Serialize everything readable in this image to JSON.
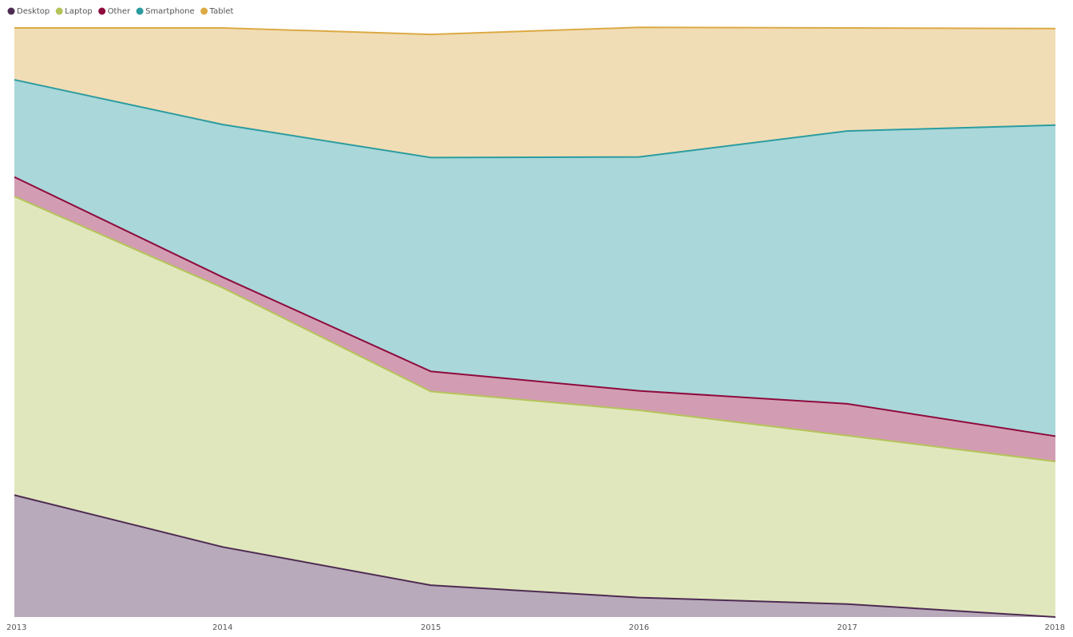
{
  "chart_data": {
    "type": "stacked-area",
    "categories": [
      "2013",
      "2014",
      "2015",
      "2016",
      "2017",
      "2018"
    ],
    "series": [
      {
        "name": "Desktop",
        "color": "#4d2b52",
        "values": [
          20.7,
          11.9,
          5.4,
          3.3,
          2.2,
          0
        ]
      },
      {
        "name": "Laptop",
        "color": "#b5c45a",
        "values": [
          50.7,
          44.0,
          32.9,
          31.8,
          28.6,
          26.4
        ]
      },
      {
        "name": "Other",
        "color": "#8e0b3e",
        "values": [
          3.3,
          1.8,
          3.4,
          3.3,
          5.4,
          4.3
        ]
      },
      {
        "name": "Smartphone",
        "color": "#2b9ca0",
        "values": [
          16.5,
          25.9,
          36.3,
          39.7,
          46.3,
          52.8
        ]
      },
      {
        "name": "Tablet",
        "color": "#dcaa45",
        "values": [
          8.8,
          16.4,
          20.9,
          22.0,
          17.5,
          16.4
        ]
      }
    ],
    "ylim": [
      0,
      100
    ],
    "legend": "top-left"
  }
}
